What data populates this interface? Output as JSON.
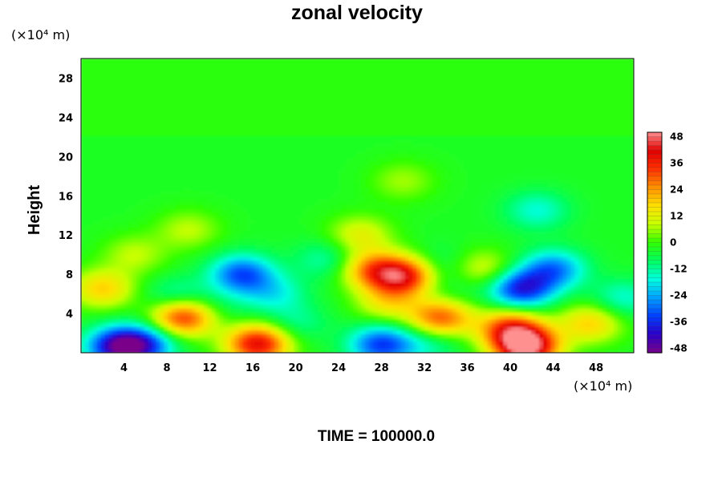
{
  "chart_data": {
    "type": "heatmap",
    "title": "zonal velocity",
    "x_unit_label": "(×10⁴ m)",
    "y_unit_label": "(×10⁴ m)",
    "ylabel": "Height",
    "xlabel": "",
    "footer": "TIME = 100000.0",
    "xlim": [
      0,
      51.5
    ],
    "ylim": [
      0,
      30
    ],
    "x_ticks": [
      4,
      8,
      12,
      16,
      20,
      24,
      28,
      32,
      36,
      40,
      44,
      48
    ],
    "y_ticks": [
      4,
      8,
      12,
      16,
      20,
      24,
      28
    ],
    "colorbar": {
      "range": [
        -50,
        50
      ],
      "ticks": [
        48,
        36,
        24,
        12,
        0,
        -12,
        -24,
        -36,
        -48
      ],
      "colormap": [
        "#7a008a",
        "#2a00c8",
        "#0040ff",
        "#00a0ff",
        "#00ffe0",
        "#00ff60",
        "#30ff00",
        "#c8ff00",
        "#ffe000",
        "#ff9000",
        "#ff3000",
        "#e00000",
        "#ff9090"
      ]
    },
    "background_value": -3,
    "features": [
      {
        "x": 3.5,
        "y": 0.6,
        "value": -42
      },
      {
        "x": 6.0,
        "y": 0.9,
        "value": -28
      },
      {
        "x": 2.0,
        "y": 6.5,
        "value": 18
      },
      {
        "x": 9.5,
        "y": 3.7,
        "value": 38
      },
      {
        "x": 9.0,
        "y": 5.5,
        "value": -18
      },
      {
        "x": 15.0,
        "y": 8.0,
        "value": -32
      },
      {
        "x": 18.0,
        "y": 6.0,
        "value": -16
      },
      {
        "x": 13.0,
        "y": 4.5,
        "value": -8
      },
      {
        "x": 16.5,
        "y": 0.9,
        "value": 40
      },
      {
        "x": 20.0,
        "y": 3.0,
        "value": -12
      },
      {
        "x": 27.0,
        "y": 8.5,
        "value": 22
      },
      {
        "x": 30.0,
        "y": 7.8,
        "value": 38
      },
      {
        "x": 28.5,
        "y": 5.0,
        "value": 12
      },
      {
        "x": 28.0,
        "y": 0.8,
        "value": -34
      },
      {
        "x": 32.5,
        "y": 1.0,
        "value": -14
      },
      {
        "x": 33.5,
        "y": 3.5,
        "value": 30
      },
      {
        "x": 34.5,
        "y": 6.5,
        "value": -8
      },
      {
        "x": 33.5,
        "y": 9.0,
        "value": -10
      },
      {
        "x": 41.0,
        "y": 6.5,
        "value": -38
      },
      {
        "x": 44.0,
        "y": 8.5,
        "value": -28
      },
      {
        "x": 41.5,
        "y": 0.6,
        "value": 50
      },
      {
        "x": 40.0,
        "y": 2.5,
        "value": 30
      },
      {
        "x": 47.5,
        "y": 3.0,
        "value": 18
      },
      {
        "x": 50.5,
        "y": 5.5,
        "value": -16
      },
      {
        "x": 37.5,
        "y": 8.5,
        "value": 12
      },
      {
        "x": 23.0,
        "y": 9.5,
        "value": -14
      },
      {
        "x": 5.0,
        "y": 10.0,
        "value": 8
      },
      {
        "x": 42.5,
        "y": 14.5,
        "value": -16
      },
      {
        "x": 26.0,
        "y": 12.0,
        "value": 12
      },
      {
        "x": 10.0,
        "y": 12.5,
        "value": 8
      },
      {
        "x": 30.0,
        "y": 17.5,
        "value": 6
      }
    ]
  }
}
